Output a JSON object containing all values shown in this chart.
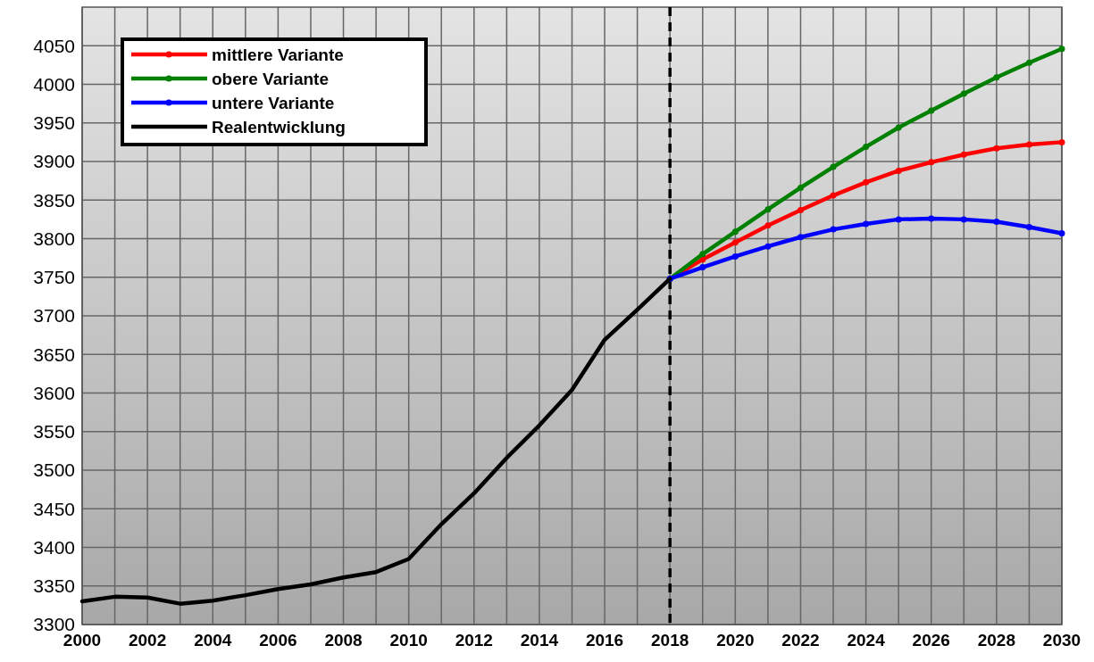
{
  "chart_data": {
    "type": "line",
    "x": [
      2000,
      2001,
      2002,
      2003,
      2004,
      2005,
      2006,
      2007,
      2008,
      2009,
      2010,
      2011,
      2012,
      2013,
      2014,
      2015,
      2016,
      2017,
      2018,
      2019,
      2020,
      2021,
      2022,
      2023,
      2024,
      2025,
      2026,
      2027,
      2028,
      2029,
      2030
    ],
    "xlim": [
      2000,
      2030
    ],
    "xticks": [
      2000,
      {
        "value": 2001,
        "label": null
      },
      2002,
      {
        "value": 2003,
        "label": null
      },
      2004,
      {
        "value": 2005,
        "label": null
      },
      2006,
      {
        "value": 2007,
        "label": null
      },
      2008,
      {
        "value": 2009,
        "label": null
      },
      2010,
      {
        "value": 2011,
        "label": null
      },
      2012,
      {
        "value": 2013,
        "label": null
      },
      2014,
      {
        "value": 2015,
        "label": null
      },
      2016,
      {
        "value": 2017,
        "label": null
      },
      2018,
      {
        "value": 2019,
        "label": null
      },
      2020,
      {
        "value": 2021,
        "label": null
      },
      2022,
      {
        "value": 2023,
        "label": null
      },
      2024,
      {
        "value": 2025,
        "label": null
      },
      2026,
      {
        "value": 2027,
        "label": null
      },
      2028,
      {
        "value": 2029,
        "label": null
      },
      2030
    ],
    "ylim": [
      3300,
      4100
    ],
    "yticks": [
      3300,
      3350,
      3400,
      3450,
      3500,
      3550,
      3600,
      3650,
      3700,
      3750,
      3800,
      3850,
      3900,
      3950,
      4000,
      4050
    ],
    "grid": true,
    "legend": "top left",
    "ref_lines": [
      {
        "axis": "x",
        "value": 2018,
        "color": "#000000",
        "line_style": "dashed"
      }
    ],
    "series": [
      {
        "name": "mittlere Variante",
        "color": "#ff0000",
        "marker": "circle",
        "values": [
          null,
          null,
          null,
          null,
          null,
          null,
          null,
          null,
          null,
          null,
          null,
          null,
          null,
          null,
          null,
          null,
          null,
          null,
          3748,
          3773,
          3795,
          3817,
          3837,
          3856,
          3873,
          3888,
          3899,
          3909,
          3917,
          3922,
          3925
        ]
      },
      {
        "name": "obere Variante",
        "color": "#008000",
        "marker": "circle",
        "values": [
          null,
          null,
          null,
          null,
          null,
          null,
          null,
          null,
          null,
          null,
          null,
          null,
          null,
          null,
          null,
          null,
          null,
          null,
          3748,
          3780,
          3809,
          3838,
          3866,
          3893,
          3919,
          3944,
          3966,
          3988,
          4009,
          4028,
          4046
        ]
      },
      {
        "name": "untere Variante",
        "color": "#0000ff",
        "marker": "circle",
        "values": [
          null,
          null,
          null,
          null,
          null,
          null,
          null,
          null,
          null,
          null,
          null,
          null,
          null,
          null,
          null,
          null,
          null,
          null,
          3748,
          3763,
          3777,
          3790,
          3802,
          3812,
          3819,
          3825,
          3826,
          3825,
          3822,
          3815,
          3807
        ]
      },
      {
        "name": "Realentwicklung",
        "color": "#000000",
        "marker": "none",
        "values": [
          3330,
          3336,
          3335,
          3327,
          3331,
          3338,
          3346,
          3352,
          3361,
          3368,
          3385,
          3430,
          3470,
          3516,
          3558,
          3604,
          3669,
          3708,
          3748,
          null,
          null,
          null,
          null,
          null,
          null,
          null,
          null,
          null,
          null,
          null,
          null
        ]
      }
    ]
  }
}
